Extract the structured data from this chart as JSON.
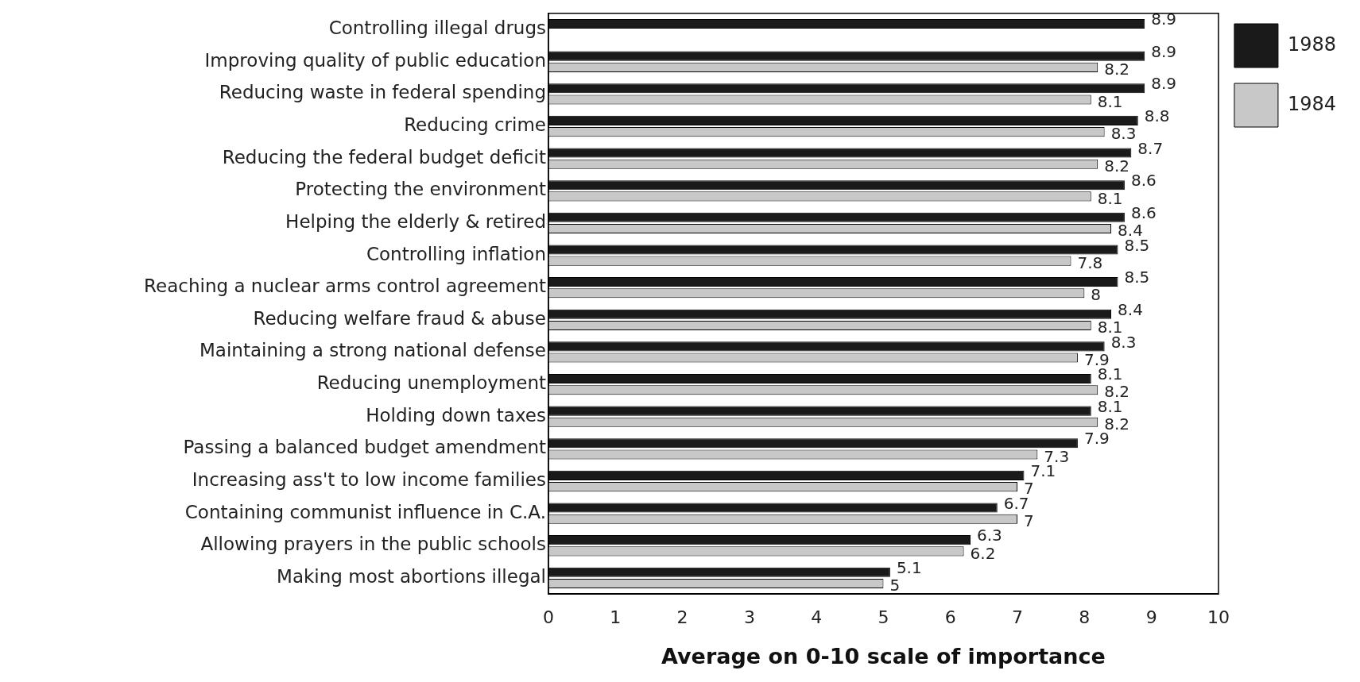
{
  "chart_data": {
    "type": "bar",
    "orientation": "horizontal",
    "xlabel": "Average on 0-10 scale of importance",
    "categories": [
      "Controlling illegal drugs",
      "Improving quality of public education",
      "Reducing waste in federal spending",
      "Reducing crime",
      "Reducing the federal budget deficit",
      "Protecting the environment",
      "Helping the elderly & retired",
      "Controlling inflation",
      "Reaching a nuclear arms control agreement",
      "Reducing welfare fraud & abuse",
      "Maintaining a strong national defense",
      "Reducing unemployment",
      "Holding down taxes",
      "Passing a balanced budget amendment",
      "Increasing ass't to low income families",
      "Containing communist influence in C.A.",
      "Allowing prayers in the public schools",
      "Making most abortions illegal"
    ],
    "series": [
      {
        "name": "1988",
        "color": "#1a1a1a",
        "values": [
          8.9,
          8.9,
          8.9,
          8.8,
          8.7,
          8.6,
          8.6,
          8.5,
          8.5,
          8.4,
          8.3,
          8.1,
          8.1,
          7.9,
          7.1,
          6.7,
          6.3,
          5.1
        ]
      },
      {
        "name": "1984",
        "color": "#c8c8c8",
        "values": [
          null,
          8.2,
          8.1,
          8.3,
          8.2,
          8.1,
          8.4,
          7.8,
          8,
          8.1,
          7.9,
          8.2,
          8.2,
          7.3,
          7,
          7,
          6.2,
          5
        ]
      }
    ],
    "xlim": [
      0,
      10
    ],
    "xticks": [
      0,
      1,
      2,
      3,
      4,
      5,
      6,
      7,
      8,
      9,
      10
    ],
    "data_labels": true,
    "legend": "top right",
    "grid": false
  }
}
